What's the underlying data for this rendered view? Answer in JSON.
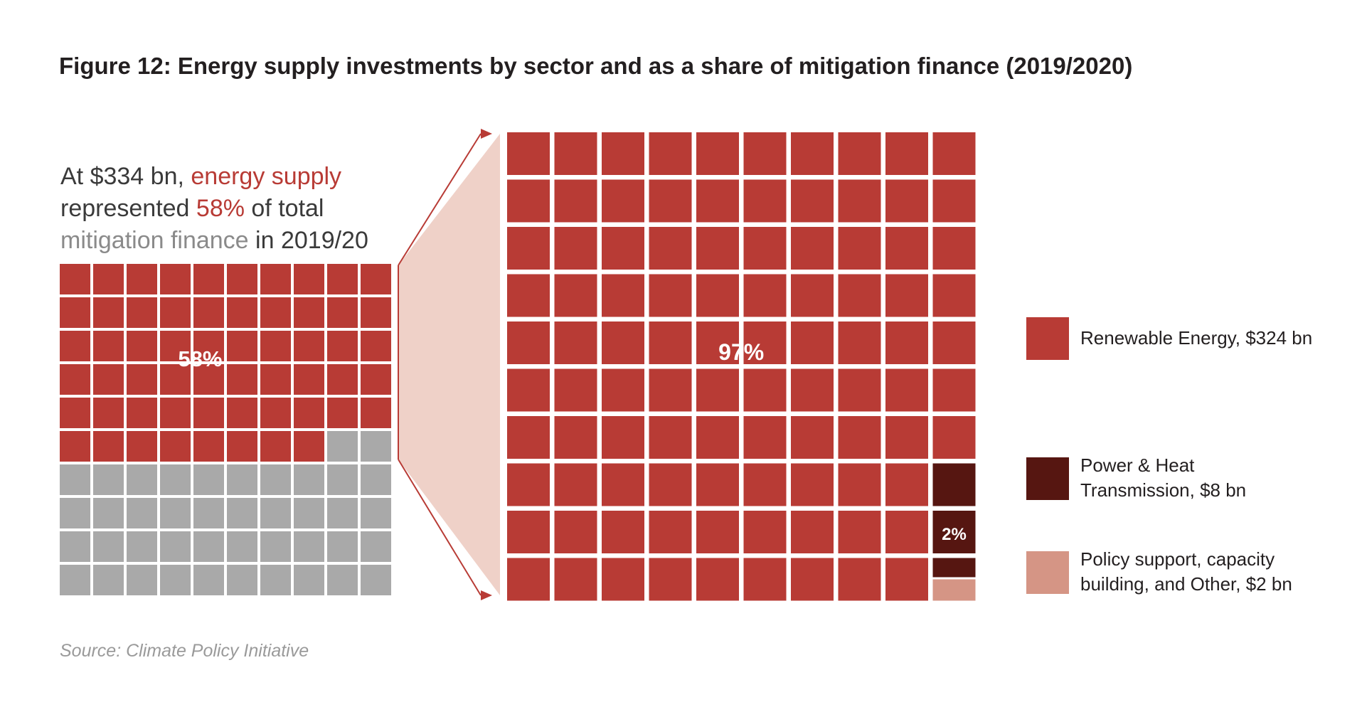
{
  "title": "Figure 12: Energy supply investments by sector and as a share of mitigation finance (2019/2020)",
  "intro": {
    "p1": "At $334 bn, ",
    "p2": "energy supply",
    "p3": "represented ",
    "p4": "58%",
    "p5": " of total",
    "p6": "mitigation finance",
    "p7": " in 2019/20"
  },
  "source": "Source: Climate Policy Initiative",
  "colors": {
    "renewable": "#b83b35",
    "transmission": "#561611",
    "policy": "#d59585",
    "other_mitigation": "#a9a9a9",
    "connector": "#efd1c8",
    "connector_line": "#b83b35"
  },
  "chart_data": [
    {
      "type": "waffle",
      "name": "Energy supply share of mitigation finance",
      "grid": [
        10,
        10
      ],
      "label": "58%",
      "categories": [
        {
          "name": "energy supply",
          "value": 58,
          "color": "#b83b35"
        },
        {
          "name": "mitigation finance",
          "value": 42,
          "color": "#a9a9a9"
        }
      ]
    },
    {
      "type": "waffle",
      "name": "Energy supply investments by sector",
      "grid": [
        10,
        10
      ],
      "label": "97%",
      "label2": "2%",
      "categories": [
        {
          "name": "Renewable Energy, $324 bn",
          "value": 97,
          "amount_bn": 324,
          "color": "#b83b35"
        },
        {
          "name": "Power & Heat Transmission, $8 bn",
          "value": 2.5,
          "amount_bn": 8,
          "color": "#561611"
        },
        {
          "name": "Policy support, capacity building, and Other, $2 bn",
          "value": 0.5,
          "amount_bn": 2,
          "color": "#d59585"
        }
      ]
    }
  ],
  "legend": [
    {
      "label_line1": "Renewable Energy, $324 bn",
      "label_line2": "",
      "color": "#b83b35"
    },
    {
      "label_line1": "Power & Heat",
      "label_line2": "Transmission, $8 bn",
      "color": "#561611"
    },
    {
      "label_line1": "Policy support, capacity",
      "label_line2": "building, and Other, $2 bn",
      "color": "#d59585"
    }
  ]
}
